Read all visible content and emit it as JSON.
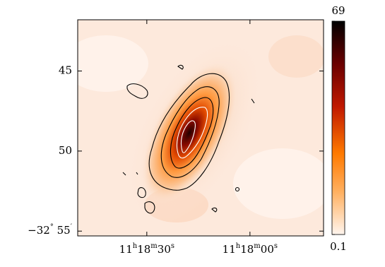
{
  "chart_data": {
    "type": "image",
    "xlim": [
      50.1,
      -21.4
    ],
    "xticks": [
      {
        "value": 30,
        "label": "11h18m30s"
      },
      {
        "value": 0,
        "label": "11h18m00s"
      }
    ],
    "ylim": [
      55.3,
      41.8
    ],
    "yticks": [
      45,
      50,
      {
        "value": 55,
        "label": "−32° 55′"
      }
    ],
    "colorbar": {
      "lim": [
        0.1,
        69
      ],
      "ticks": [
        0.1,
        69
      ]
    }
  }
}
